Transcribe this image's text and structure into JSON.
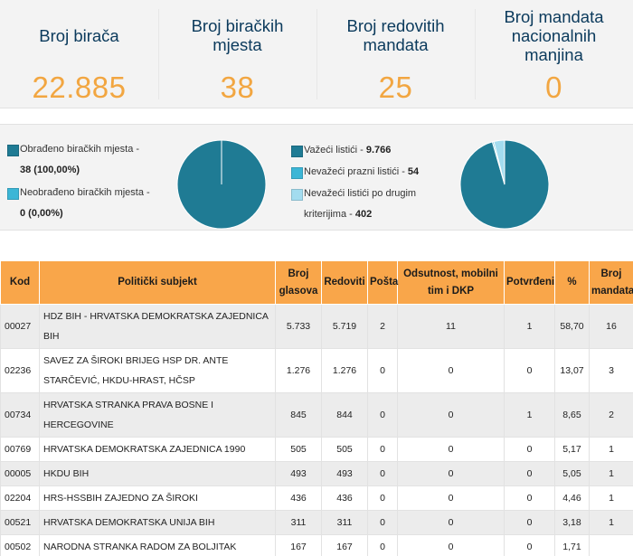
{
  "stats": [
    {
      "label": "Broj birača",
      "value": "22.885"
    },
    {
      "label": "Broj biračkih\nmjesta",
      "value": "38"
    },
    {
      "label": "Broj redovitih\nmandata",
      "value": "25"
    },
    {
      "label": "Broj mandata\nnacionalnih\nmanjina",
      "value": "0"
    }
  ],
  "summary": {
    "polling_legend": [
      {
        "line1": "Obrađeno biračkih mjesta -",
        "value": "38 (100,00%)",
        "color": "#1f7b94"
      },
      {
        "line1": "Neobrađeno biračkih mjesta -",
        "value": "0 (0,00%)",
        "color": "#3cb6d6"
      }
    ],
    "ballots_legend": [
      {
        "text": "Važeći listići - ",
        "value": "9.766",
        "color": "#1f7b94"
      },
      {
        "text": "Nevažeći prazni listići - ",
        "value": "54",
        "color": "#3cb6d6"
      },
      {
        "line1": "Nevažeći listići po drugim",
        "line2": "kriterijima - ",
        "value": "402",
        "color": "#a3dcef"
      }
    ],
    "pie_polling": [
      38,
      0
    ],
    "pie_ballots": [
      9766,
      54,
      402
    ]
  },
  "table": {
    "headers": {
      "kod": "Kod",
      "subjekt": "Politički subjekt",
      "glasova": "Broj glasova",
      "redoviti": "Redoviti",
      "posta": "Pošta",
      "odsutnost": "Odsutnost, mobilni tim i DKP",
      "potvrdeni": "Potvrđeni",
      "posto": "%",
      "mandata": "Broj mandata"
    },
    "rows": [
      {
        "kod": "00027",
        "subjekt": "HDZ BIH - HRVATSKA DEMOKRATSKA ZAJEDNICA BIH",
        "glasova": "5.733",
        "redoviti": "5.719",
        "posta": "2",
        "odsutnost": "11",
        "potvrdeni": "1",
        "posto": "58,70",
        "mandata": "16"
      },
      {
        "kod": "02236",
        "subjekt": "SAVEZ ZA ŠIROKI BRIJEG HSP DR. ANTE STARČEVIĆ, HKDU-HRAST, HČSP",
        "glasova": "1.276",
        "redoviti": "1.276",
        "posta": "0",
        "odsutnost": "0",
        "potvrdeni": "0",
        "posto": "13,07",
        "mandata": "3"
      },
      {
        "kod": "00734",
        "subjekt": "HRVATSKA STRANKA PRAVA BOSNE I HERCEGOVINE",
        "glasova": "845",
        "redoviti": "844",
        "posta": "0",
        "odsutnost": "0",
        "potvrdeni": "1",
        "posto": "8,65",
        "mandata": "2"
      },
      {
        "kod": "00769",
        "subjekt": "HRVATSKA DEMOKRATSKA ZAJEDNICA 1990",
        "glasova": "505",
        "redoviti": "505",
        "posta": "0",
        "odsutnost": "0",
        "potvrdeni": "0",
        "posto": "5,17",
        "mandata": "1"
      },
      {
        "kod": "00005",
        "subjekt": "HKDU BIH",
        "glasova": "493",
        "redoviti": "493",
        "posta": "0",
        "odsutnost": "0",
        "potvrdeni": "0",
        "posto": "5,05",
        "mandata": "1"
      },
      {
        "kod": "02204",
        "subjekt": "HRS-HSSBIH ZAJEDNO ZA ŠIROKI",
        "glasova": "436",
        "redoviti": "436",
        "posta": "0",
        "odsutnost": "0",
        "potvrdeni": "0",
        "posto": "4,46",
        "mandata": "1"
      },
      {
        "kod": "00521",
        "subjekt": "HRVATSKA DEMOKRATSKA UNIJA BIH",
        "glasova": "311",
        "redoviti": "311",
        "posta": "0",
        "odsutnost": "0",
        "potvrdeni": "0",
        "posto": "3,18",
        "mandata": "1"
      },
      {
        "kod": "00502",
        "subjekt": "NARODNA STRANKA RADOM ZA BOLJITAK",
        "glasova": "167",
        "redoviti": "167",
        "posta": "0",
        "odsutnost": "0",
        "potvrdeni": "0",
        "posto": "1,71",
        "mandata": ""
      }
    ]
  }
}
